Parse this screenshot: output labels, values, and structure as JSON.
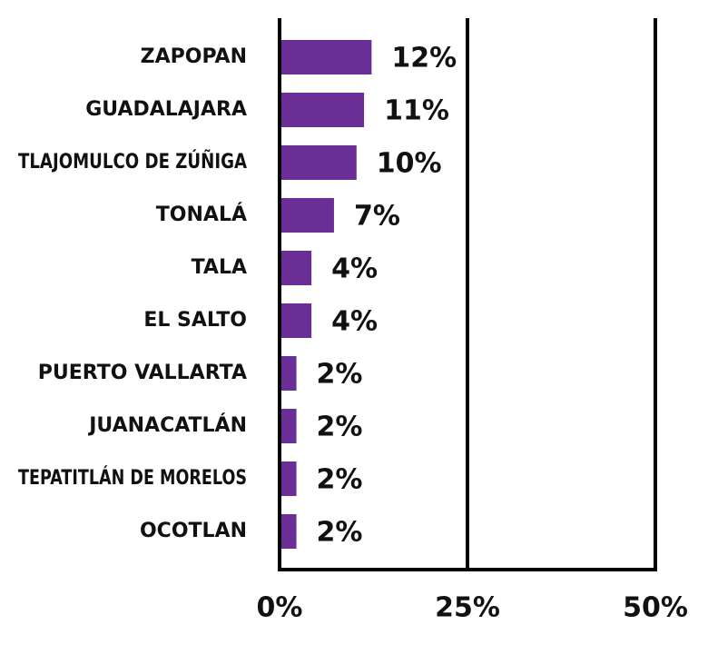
{
  "chart_data": {
    "type": "bar",
    "orientation": "horizontal",
    "title": "",
    "xlabel": "",
    "ylabel": "",
    "categories": [
      "ZAPOPAN",
      "GUADALAJARA",
      "TLAJOMULCO DE ZÚÑIGA",
      "TONALÁ",
      "TALA",
      "EL SALTO",
      "PUERTO VALLARTA",
      "JUANACATLÁN",
      "TEPATITLÁN DE MORELOS",
      "OCOTLAN"
    ],
    "values": [
      12,
      11,
      10,
      7,
      4,
      4,
      2,
      2,
      2,
      2
    ],
    "value_labels": [
      "12%",
      "11%",
      "10%",
      "7%",
      "4%",
      "4%",
      "2%",
      "2%",
      "2%",
      "2%"
    ],
    "xlim": [
      0,
      50
    ],
    "x_ticks": [
      0,
      25,
      50
    ],
    "x_tick_labels": [
      "0%",
      "25%",
      "50%"
    ],
    "grid": "vertical lines at 25% and 50%",
    "legend": "none",
    "bar_color": "#6a2f97",
    "axis_color": "#000000"
  }
}
